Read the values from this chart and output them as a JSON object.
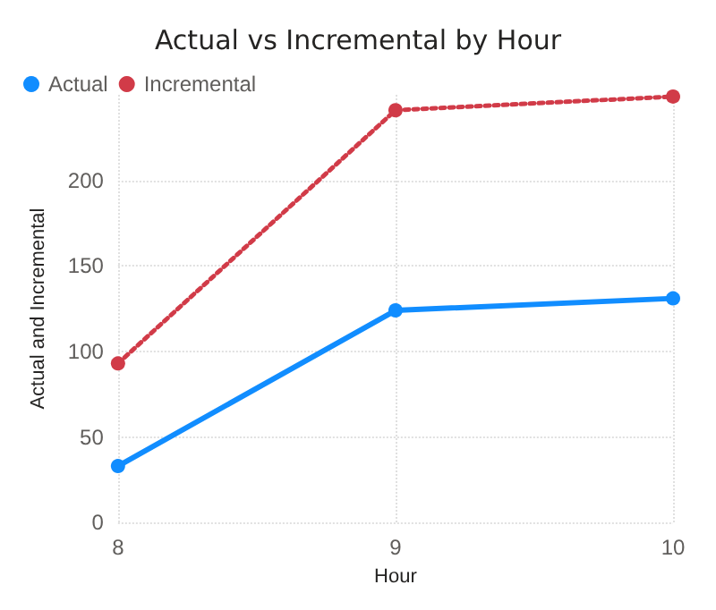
{
  "chart_data": {
    "type": "line",
    "title": "Actual vs Incremental by Hour",
    "xlabel": "Hour",
    "ylabel": "Actual and Incremental",
    "x": [
      8,
      9,
      10
    ],
    "xlim": [
      8,
      10
    ],
    "xticks": [
      8,
      9,
      10
    ],
    "ylim": [
      0,
      250
    ],
    "yticks": [
      0,
      50,
      100,
      150,
      200
    ],
    "series": [
      {
        "name": "Actual",
        "color": "#118dff",
        "values": [
          33,
          124,
          131
        ],
        "line_style": "solid"
      },
      {
        "name": "Incremental",
        "color": "#d13b48",
        "values": [
          93,
          241,
          249
        ],
        "line_style": "dotted"
      }
    ],
    "grid": true,
    "legend": "top left",
    "marker": "circle"
  }
}
